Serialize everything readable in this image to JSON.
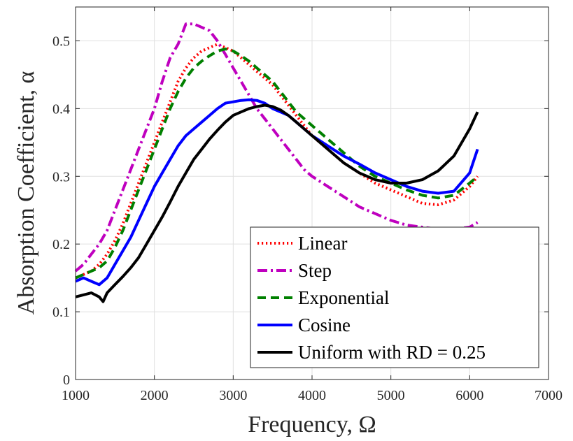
{
  "chart_data": {
    "type": "line",
    "xlabel": "Frequency, Ω",
    "ylabel": "Absorption Coefficient, α",
    "xlim": [
      1000,
      7000
    ],
    "ylim": [
      0,
      0.55
    ],
    "xticks": [
      1000,
      2000,
      3000,
      4000,
      5000,
      6000,
      7000
    ],
    "yticks": [
      0,
      0.1,
      0.2,
      0.3,
      0.4,
      0.5
    ],
    "xtick_labels": [
      "1000",
      "2000",
      "3000",
      "4000",
      "5000",
      "6000",
      "7000"
    ],
    "ytick_labels": [
      "0",
      "0.1",
      "0.2",
      "0.3",
      "0.4",
      "0.5"
    ],
    "grid": true,
    "legend_position": "bottom-right",
    "series": [
      {
        "name": "Linear",
        "color": "#ff0000",
        "style": "dotted",
        "x": [
          1000,
          1100,
          1200,
          1300,
          1400,
          1500,
          1600,
          1700,
          1800,
          1900,
          2000,
          2100,
          2200,
          2300,
          2400,
          2500,
          2600,
          2700,
          2800,
          2900,
          3000,
          3100,
          3200,
          3300,
          3400,
          3500,
          3600,
          3700,
          3800,
          3900,
          4000,
          4200,
          4400,
          4600,
          4800,
          5000,
          5200,
          5400,
          5600,
          5800,
          6000,
          6100
        ],
        "y": [
          0.15,
          0.155,
          0.16,
          0.17,
          0.185,
          0.205,
          0.23,
          0.26,
          0.29,
          0.32,
          0.35,
          0.38,
          0.41,
          0.44,
          0.46,
          0.475,
          0.485,
          0.49,
          0.495,
          0.49,
          0.485,
          0.475,
          0.465,
          0.455,
          0.445,
          0.435,
          0.42,
          0.405,
          0.39,
          0.375,
          0.36,
          0.34,
          0.32,
          0.305,
          0.29,
          0.28,
          0.27,
          0.26,
          0.258,
          0.265,
          0.285,
          0.3
        ]
      },
      {
        "name": "Step",
        "color": "#bf00bf",
        "style": "dashdot",
        "x": [
          1000,
          1100,
          1200,
          1300,
          1400,
          1500,
          1600,
          1700,
          1800,
          1900,
          2000,
          2100,
          2200,
          2300,
          2350,
          2400,
          2500,
          2600,
          2700,
          2800,
          2900,
          3000,
          3100,
          3200,
          3300,
          3400,
          3500,
          3600,
          3700,
          3800,
          3900,
          4000,
          4200,
          4400,
          4600,
          4800,
          5000,
          5200,
          5400,
          5600,
          5800,
          6000,
          6100
        ],
        "y": [
          0.16,
          0.17,
          0.185,
          0.2,
          0.22,
          0.25,
          0.28,
          0.31,
          0.34,
          0.37,
          0.4,
          0.44,
          0.475,
          0.495,
          0.51,
          0.525,
          0.525,
          0.52,
          0.515,
          0.5,
          0.48,
          0.46,
          0.44,
          0.42,
          0.4,
          0.385,
          0.37,
          0.355,
          0.34,
          0.325,
          0.31,
          0.3,
          0.285,
          0.27,
          0.255,
          0.245,
          0.235,
          0.228,
          0.225,
          0.222,
          0.222,
          0.225,
          0.232
        ]
      },
      {
        "name": "Exponential",
        "color": "#008000",
        "style": "dashed",
        "x": [
          1000,
          1100,
          1200,
          1300,
          1400,
          1500,
          1600,
          1700,
          1800,
          1900,
          2000,
          2100,
          2200,
          2300,
          2400,
          2500,
          2600,
          2700,
          2800,
          2900,
          3000,
          3100,
          3200,
          3300,
          3400,
          3500,
          3600,
          3700,
          3800,
          3900,
          4000,
          4200,
          4400,
          4600,
          4800,
          5000,
          5200,
          5400,
          5600,
          5800,
          6000,
          6100
        ],
        "y": [
          0.15,
          0.155,
          0.16,
          0.165,
          0.175,
          0.195,
          0.22,
          0.25,
          0.28,
          0.31,
          0.34,
          0.37,
          0.4,
          0.425,
          0.445,
          0.46,
          0.47,
          0.478,
          0.485,
          0.488,
          0.485,
          0.478,
          0.47,
          0.46,
          0.45,
          0.44,
          0.425,
          0.41,
          0.395,
          0.385,
          0.375,
          0.355,
          0.335,
          0.315,
          0.3,
          0.29,
          0.28,
          0.272,
          0.268,
          0.272,
          0.29,
          0.3
        ]
      },
      {
        "name": "Cosine",
        "color": "#0000ff",
        "style": "solid",
        "x": [
          1000,
          1100,
          1200,
          1300,
          1400,
          1500,
          1600,
          1700,
          1800,
          1900,
          2000,
          2100,
          2200,
          2300,
          2400,
          2500,
          2600,
          2700,
          2800,
          2900,
          3000,
          3100,
          3200,
          3300,
          3400,
          3500,
          3600,
          3700,
          3800,
          3900,
          4000,
          4200,
          4400,
          4600,
          4800,
          5000,
          5200,
          5400,
          5600,
          5800,
          6000,
          6100
        ],
        "y": [
          0.145,
          0.15,
          0.145,
          0.14,
          0.15,
          0.17,
          0.19,
          0.21,
          0.235,
          0.26,
          0.285,
          0.305,
          0.325,
          0.345,
          0.36,
          0.37,
          0.38,
          0.39,
          0.4,
          0.408,
          0.41,
          0.412,
          0.413,
          0.412,
          0.408,
          0.4,
          0.395,
          0.39,
          0.38,
          0.37,
          0.36,
          0.345,
          0.33,
          0.318,
          0.305,
          0.295,
          0.285,
          0.278,
          0.275,
          0.278,
          0.305,
          0.34
        ]
      },
      {
        "name": "Uniform with RD = 0.25",
        "color": "#000000",
        "style": "solid",
        "x": [
          1000,
          1100,
          1200,
          1300,
          1350,
          1400,
          1500,
          1600,
          1700,
          1800,
          1900,
          2000,
          2100,
          2200,
          2300,
          2400,
          2500,
          2600,
          2700,
          2800,
          2900,
          3000,
          3100,
          3200,
          3300,
          3400,
          3500,
          3600,
          3700,
          3800,
          3900,
          4000,
          4200,
          4400,
          4600,
          4800,
          5000,
          5200,
          5400,
          5600,
          5800,
          6000,
          6100
        ],
        "y": [
          0.122,
          0.125,
          0.128,
          0.122,
          0.115,
          0.128,
          0.14,
          0.152,
          0.165,
          0.18,
          0.2,
          0.22,
          0.24,
          0.262,
          0.285,
          0.305,
          0.325,
          0.34,
          0.355,
          0.368,
          0.38,
          0.39,
          0.395,
          0.4,
          0.403,
          0.405,
          0.403,
          0.398,
          0.39,
          0.38,
          0.37,
          0.36,
          0.34,
          0.32,
          0.305,
          0.295,
          0.29,
          0.29,
          0.295,
          0.308,
          0.33,
          0.37,
          0.395
        ]
      }
    ]
  }
}
